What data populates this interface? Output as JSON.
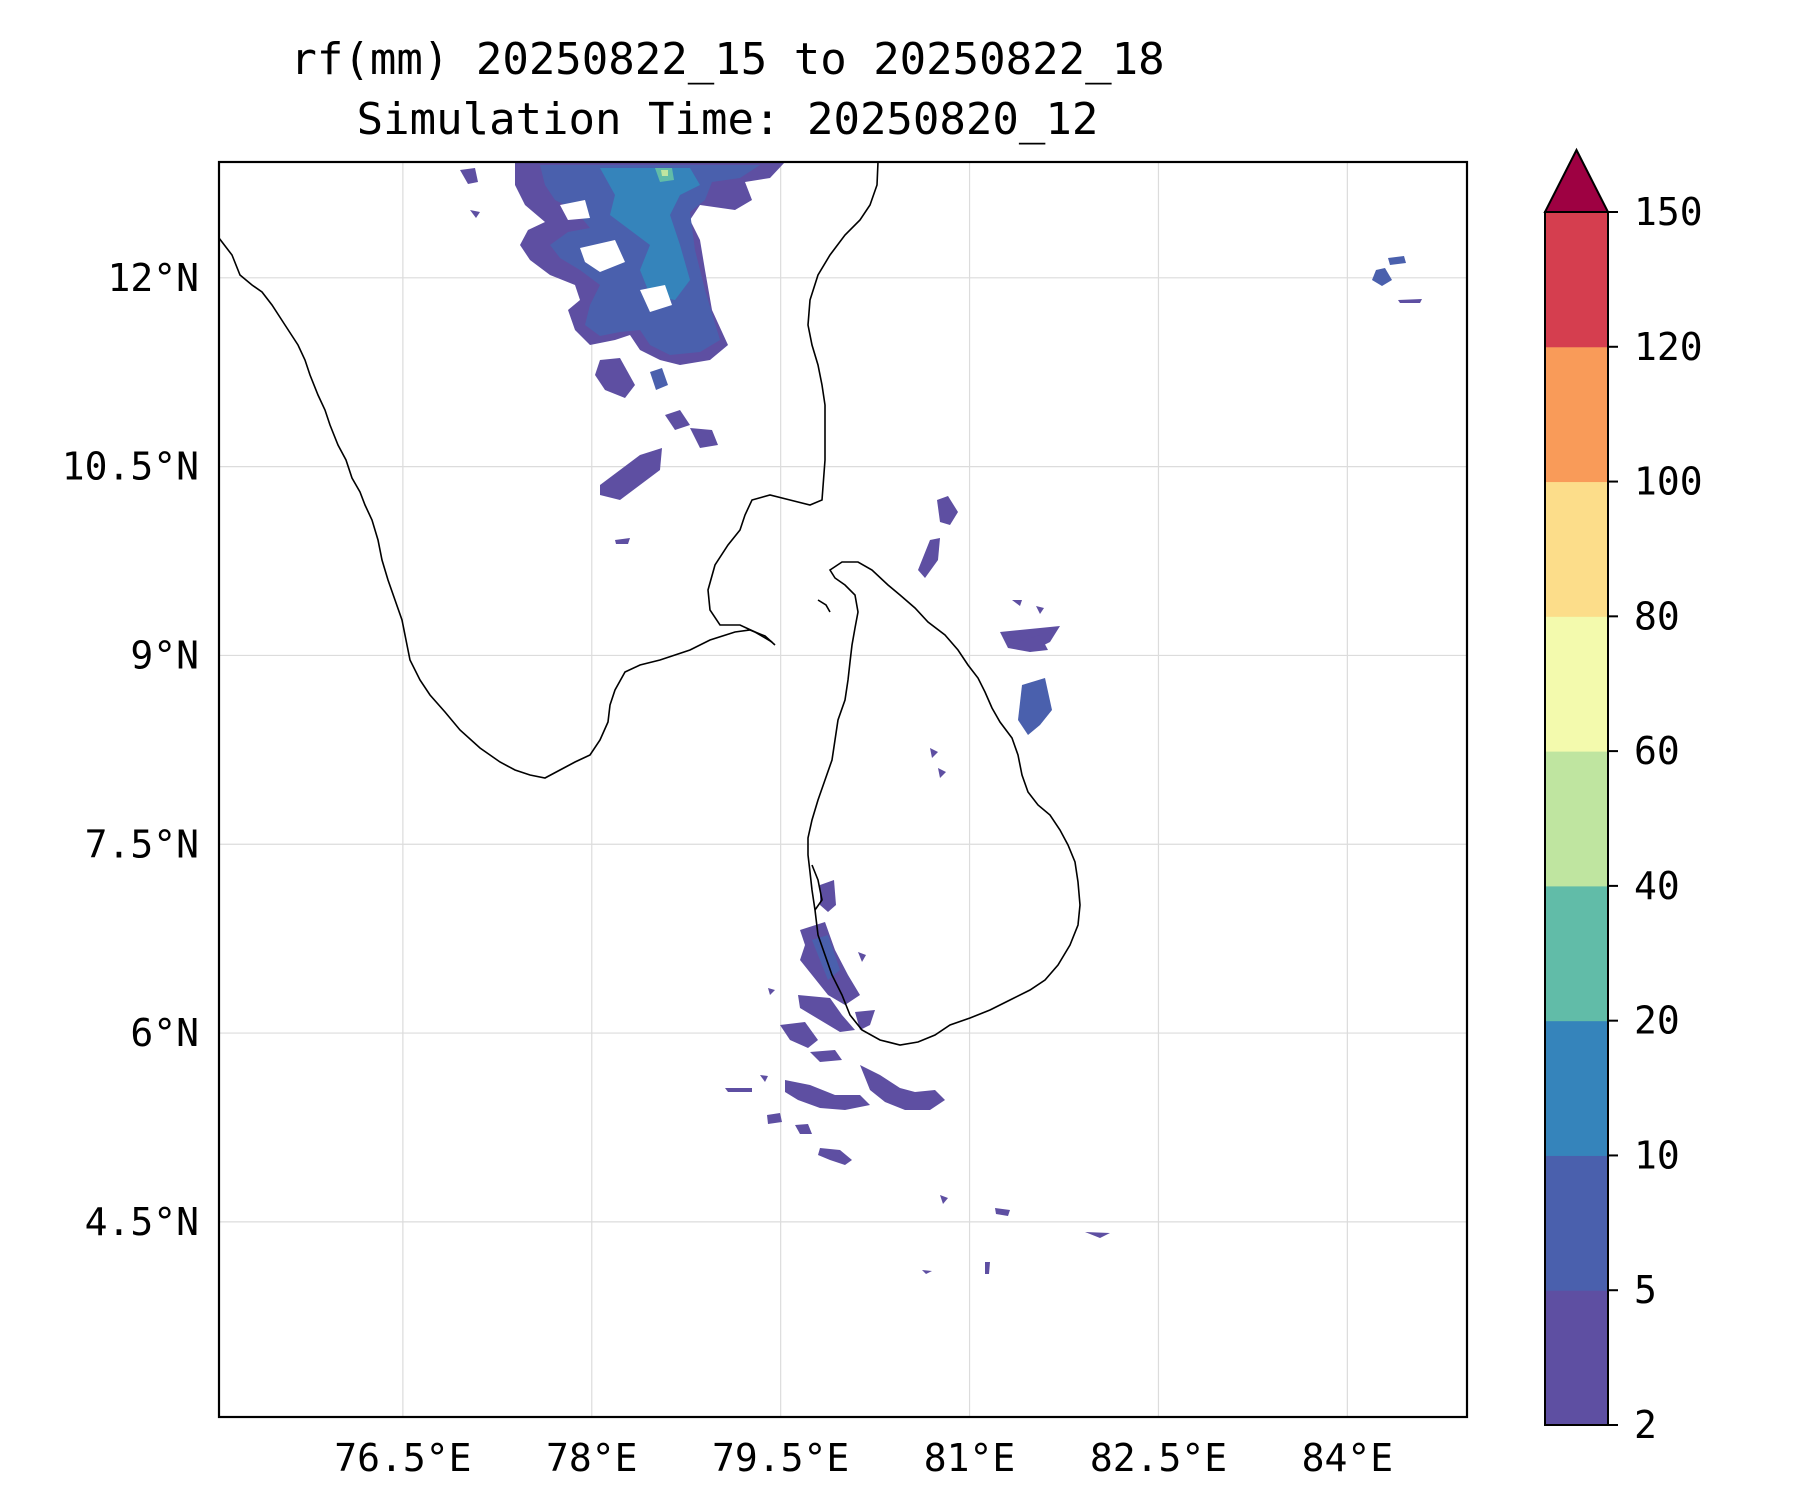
{
  "title": {
    "line1": "rf(mm) 20250822_15 to 20250822_18",
    "line2": "Simulation Time: 20250820_12"
  },
  "map": {
    "lon_range": [
      75.04,
      84.95
    ],
    "lat_range": [
      2.95,
      12.92
    ],
    "lon_ticks": [
      {
        "value": 76.5,
        "label": "76.5°E"
      },
      {
        "value": 78.0,
        "label": "78°E"
      },
      {
        "value": 79.5,
        "label": "79.5°E"
      },
      {
        "value": 81.0,
        "label": "81°E"
      },
      {
        "value": 82.5,
        "label": "82.5°E"
      },
      {
        "value": 84.0,
        "label": "84°E"
      }
    ],
    "lat_ticks": [
      {
        "value": 4.5,
        "label": "4.5°N"
      },
      {
        "value": 6.0,
        "label": "6°N"
      },
      {
        "value": 7.5,
        "label": "7.5°N"
      },
      {
        "value": 9.0,
        "label": "9°N"
      },
      {
        "value": 10.5,
        "label": "10.5°N"
      },
      {
        "value": 12.0,
        "label": "12°N"
      }
    ],
    "gridlines": true,
    "regions": [
      "South India",
      "Sri Lanka"
    ]
  },
  "colorbar": {
    "levels": [
      2,
      5,
      10,
      20,
      40,
      60,
      80,
      100,
      120,
      150
    ],
    "colors": [
      "#5e4fa2",
      "#4a60ad",
      "#3584bb",
      "#61bca8",
      "#bfe5a0",
      "#f3faad",
      "#fcdd8a",
      "#f99b59",
      "#d53e4f"
    ],
    "extend_color": "#9e0142",
    "extend": "max"
  },
  "rainfall_cells": [
    {
      "region": "north of Palk Bay, Tamil Nadu",
      "lon_range": [
        77.3,
        79.6
      ],
      "lat_range": [
        10.4,
        12.9
      ],
      "max_class_mm": "40-60"
    },
    {
      "region": "off Sri Lanka north-east coast",
      "lon_range": [
        80.7,
        81.4
      ],
      "lat_range": [
        8.6,
        10.3
      ],
      "max_class_mm": "2-5"
    },
    {
      "region": "south-west Sri Lanka and sea to south",
      "lon_range": [
        79.0,
        81.4
      ],
      "lat_range": [
        4.8,
        7.3
      ],
      "max_class_mm": "2-10"
    },
    {
      "region": "far east, Bay of Bengal",
      "lon_range": [
        84.0,
        84.7
      ],
      "lat_range": [
        11.7,
        12.2
      ],
      "max_class_mm": "2-5"
    }
  ]
}
